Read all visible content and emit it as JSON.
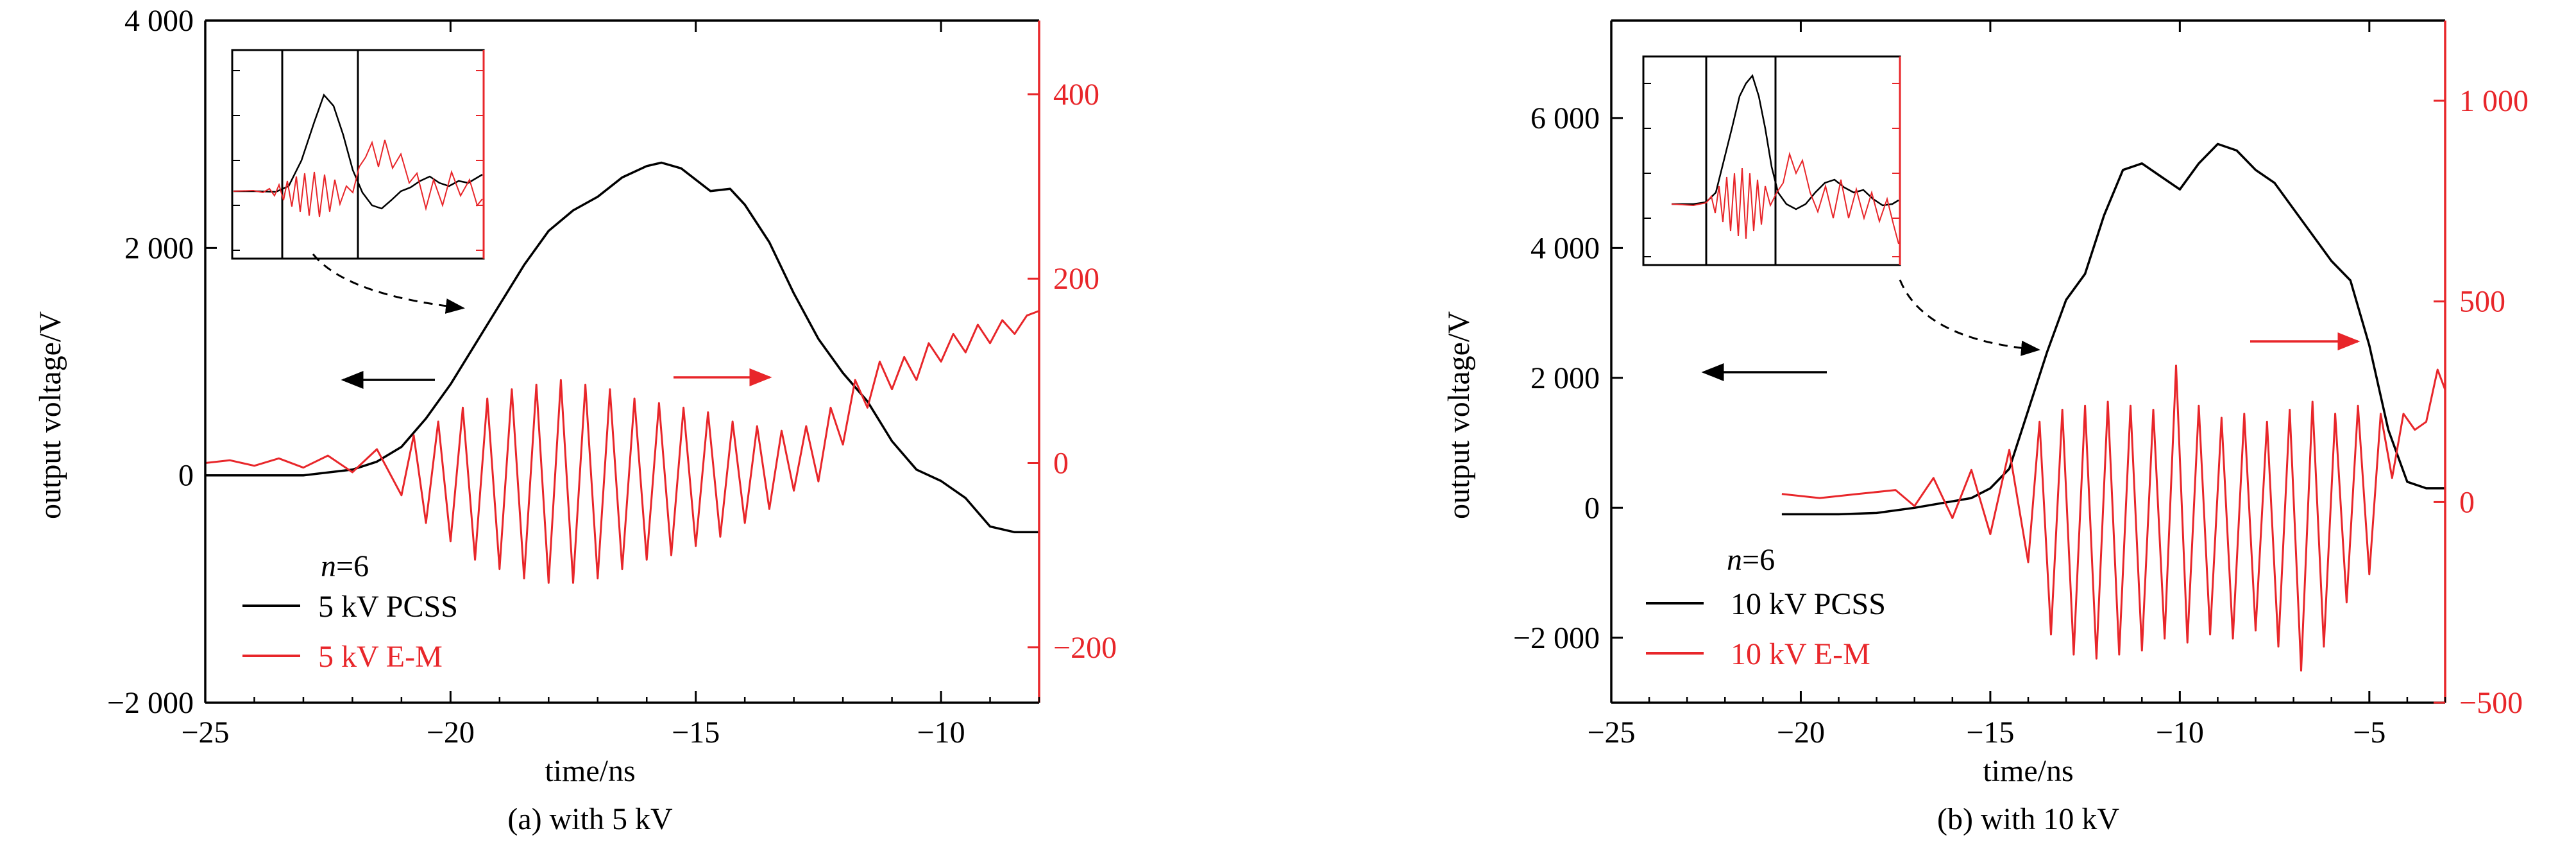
{
  "chart_data": [
    {
      "type": "line",
      "panel_caption": "(a) with 5 kV",
      "xlabel": "time/ns",
      "ylabel": "output voltage/V",
      "xlim": [
        -25,
        -8
      ],
      "ylim": [
        -2000,
        4000
      ],
      "ylim_right": [
        -260,
        480
      ],
      "x_ticks": [
        -25,
        -20,
        -15,
        -10
      ],
      "x_tick_labels": [
        "−25",
        "−20",
        "−15",
        "−10"
      ],
      "y_ticks": [
        -2000,
        0,
        2000,
        4000
      ],
      "y_tick_labels": [
        "−2 000",
        "0",
        "2 000",
        "4 000"
      ],
      "y_right_ticks": [
        -200,
        0,
        200,
        400
      ],
      "y_right_tick_labels": [
        "−200",
        "0",
        "200",
        "400"
      ],
      "annotation": "n=6",
      "annotation_italic": "n",
      "annotation_rest": "=6",
      "legend_position": "lower-left",
      "series": [
        {
          "name": "5 kV PCSS",
          "axis": "left",
          "color": "#000000",
          "x": [
            -25,
            -24,
            -23,
            -22,
            -21.5,
            -21,
            -20.5,
            -20,
            -19.5,
            -19,
            -18.5,
            -18,
            -17.5,
            -17,
            -16.5,
            -16,
            -15.7,
            -15.3,
            -15,
            -14.7,
            -14.3,
            -14,
            -13.5,
            -13,
            -12.5,
            -12,
            -11.5,
            -11,
            -10.5,
            -10,
            -9.5,
            -9,
            -8.5,
            -8
          ],
          "y": [
            0,
            0,
            0,
            50,
            120,
            250,
            500,
            800,
            1150,
            1500,
            1850,
            2150,
            2330,
            2450,
            2620,
            2720,
            2750,
            2700,
            2600,
            2500,
            2520,
            2380,
            2050,
            1600,
            1200,
            900,
            650,
            300,
            50,
            -50,
            -200,
            -450,
            -500,
            -500
          ]
        },
        {
          "name": "5 kV E-M",
          "axis": "right",
          "color": "#e8262a",
          "x": [
            -25,
            -24.5,
            -24,
            -23.5,
            -23,
            -22.5,
            -22,
            -21.5,
            -21,
            -20.75,
            -20.5,
            -20.25,
            -20,
            -19.75,
            -19.5,
            -19.25,
            -19,
            -18.75,
            -18.5,
            -18.25,
            -18,
            -17.75,
            -17.5,
            -17.25,
            -17,
            -16.75,
            -16.5,
            -16.25,
            -16,
            -15.75,
            -15.5,
            -15.25,
            -15,
            -14.75,
            -14.5,
            -14.25,
            -14,
            -13.75,
            -13.5,
            -13.25,
            -13,
            -12.75,
            -12.5,
            -12.25,
            -12,
            -11.75,
            -11.5,
            -11.25,
            -11,
            -10.75,
            -10.5,
            -10.25,
            -10,
            -9.75,
            -9.5,
            -9.25,
            -9,
            -8.75,
            -8.5,
            -8.25,
            -8
          ],
          "y": [
            0,
            3,
            -3,
            5,
            -5,
            8,
            -10,
            15,
            -35,
            30,
            -65,
            45,
            -85,
            60,
            -105,
            70,
            -115,
            80,
            -125,
            85,
            -130,
            90,
            -130,
            85,
            -125,
            80,
            -115,
            70,
            -105,
            65,
            -100,
            60,
            -90,
            55,
            -80,
            45,
            -65,
            40,
            -50,
            35,
            -30,
            40,
            -20,
            60,
            20,
            90,
            60,
            110,
            80,
            115,
            90,
            130,
            110,
            140,
            120,
            150,
            130,
            155,
            140,
            160,
            165
          ]
        }
      ]
    },
    {
      "type": "line",
      "panel_caption": "(b) with 10 kV",
      "xlabel": "time/ns",
      "ylabel": "output voltage/V",
      "xlim": [
        -25,
        -3
      ],
      "ylim": [
        -3000,
        7500
      ],
      "ylim_right": [
        -500,
        1200
      ],
      "x_ticks": [
        -25,
        -20,
        -15,
        -10,
        -5
      ],
      "x_tick_labels": [
        "−25",
        "−20",
        "−15",
        "−10",
        "−5"
      ],
      "y_ticks": [
        -2000,
        0,
        2000,
        4000,
        6000
      ],
      "y_tick_labels": [
        "−2 000",
        "0",
        "2 000",
        "4 000",
        "6 000"
      ],
      "y_right_ticks": [
        -500,
        0,
        500,
        1000
      ],
      "y_right_tick_labels": [
        "−500",
        "0",
        "500",
        "1 000"
      ],
      "annotation": "n=6",
      "annotation_italic": "n",
      "annotation_rest": "=6",
      "legend_position": "lower-left",
      "series": [
        {
          "name": "10 kV PCSS",
          "axis": "left",
          "color": "#000000",
          "x": [
            -20.5,
            -19,
            -18,
            -17,
            -16,
            -15.5,
            -15,
            -14.5,
            -14,
            -13.5,
            -13,
            -12.5,
            -12,
            -11.5,
            -11,
            -10.5,
            -10,
            -9.5,
            -9,
            -8.5,
            -8,
            -7.5,
            -7,
            -6.5,
            -6,
            -5.5,
            -5,
            -4.5,
            -4,
            -3.5,
            -3
          ],
          "y": [
            -100,
            -100,
            -80,
            0,
            100,
            150,
            300,
            600,
            1500,
            2400,
            3200,
            3600,
            4500,
            5200,
            5300,
            5100,
            4900,
            5300,
            5600,
            5500,
            5200,
            5000,
            4600,
            4200,
            3800,
            3500,
            2500,
            1200,
            400,
            300,
            300
          ]
        },
        {
          "name": "10 kV E-M",
          "axis": "right",
          "color": "#e8262a",
          "x": [
            -20.5,
            -19.5,
            -18.5,
            -17.5,
            -17,
            -16.5,
            -16,
            -15.5,
            -15,
            -14.5,
            -14,
            -13.7,
            -13.4,
            -13.1,
            -12.8,
            -12.5,
            -12.2,
            -11.9,
            -11.6,
            -11.3,
            -11,
            -10.7,
            -10.4,
            -10.1,
            -9.8,
            -9.5,
            -9.2,
            -8.9,
            -8.6,
            -8.3,
            -8,
            -7.7,
            -7.4,
            -7.1,
            -6.8,
            -6.5,
            -6.2,
            -5.9,
            -5.6,
            -5.3,
            -5,
            -4.7,
            -4.4,
            -4.1,
            -3.8,
            -3.5,
            -3.2,
            -3
          ],
          "y": [
            20,
            10,
            20,
            30,
            -10,
            60,
            -40,
            80,
            -80,
            130,
            -150,
            200,
            -330,
            230,
            -380,
            240,
            -390,
            250,
            -380,
            240,
            -370,
            230,
            -340,
            340,
            -350,
            240,
            -330,
            210,
            -340,
            220,
            -320,
            200,
            -360,
            230,
            -420,
            250,
            -360,
            220,
            -250,
            240,
            -180,
            220,
            60,
            220,
            180,
            200,
            330,
            280
          ]
        }
      ]
    }
  ]
}
